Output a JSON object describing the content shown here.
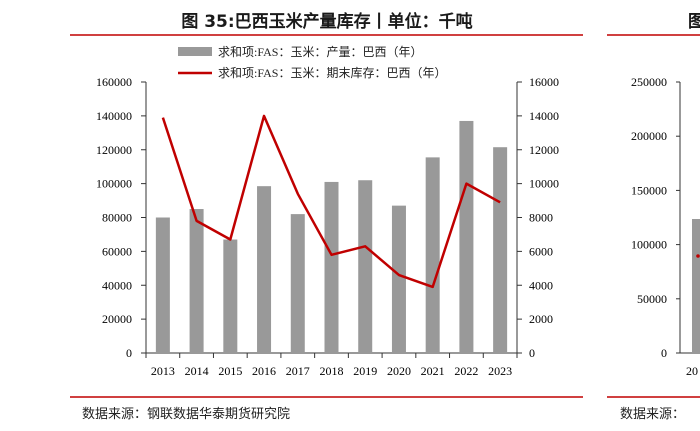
{
  "chart_data": [
    {
      "type": "bar+line",
      "title": "图 35:巴西玉米产量库存丨单位：千吨",
      "categories": [
        "2013",
        "2014",
        "2015",
        "2016",
        "2017",
        "2018",
        "2019",
        "2020",
        "2021",
        "2022",
        "2023"
      ],
      "series": [
        {
          "name": "求和项:FAS：玉米：产量：巴西（年）",
          "kind": "bar",
          "axis": "left",
          "color": "#999999",
          "values": [
            80000,
            85000,
            67000,
            98500,
            82000,
            101000,
            102000,
            87000,
            115500,
            137000,
            121500
          ]
        },
        {
          "name": "求和项:FAS：玉米：期末库存：巴西（年）",
          "kind": "line",
          "axis": "right",
          "color": "#c00000",
          "values": [
            13900,
            7800,
            6700,
            14000,
            9400,
            5800,
            6300,
            4600,
            3900,
            10000,
            8900
          ]
        }
      ],
      "yleft": {
        "min": 0,
        "max": 160000,
        "ticks": [
          "0",
          "20000",
          "40000",
          "60000",
          "80000",
          "100000",
          "120000",
          "140000",
          "160000"
        ]
      },
      "yright": {
        "min": 0,
        "max": 16000,
        "ticks": [
          "0",
          "2000",
          "4000",
          "6000",
          "8000",
          "10000",
          "12000",
          "14000",
          "16000"
        ]
      },
      "source": "数据来源：钢联数据华泰期货研究院"
    },
    {
      "type": "partial",
      "title_fragment": "图",
      "yleft_ticks": [
        "0",
        "50000",
        "100000",
        "150000",
        "200000",
        "250000"
      ],
      "x_fragment": "20",
      "source": "数据来源："
    }
  ]
}
